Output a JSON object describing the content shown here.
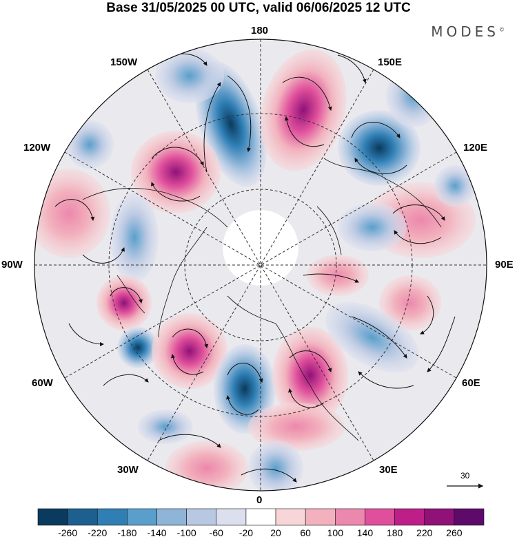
{
  "header": {
    "title": "Base 31/05/2025 00 UTC, valid 06/06/2025 12 UTC",
    "brand": "MODES",
    "brand_mark": "©"
  },
  "map": {
    "projection": "north-polar-stereographic",
    "longitude_labels": {
      "top": "180",
      "top_left": "150W",
      "top_right": "150E",
      "upper_left": "120W",
      "upper_right": "120E",
      "left": "90W",
      "right": "90E",
      "lower_left": "60W",
      "lower_right": "60E",
      "bottom_left": "30W",
      "bottom_right": "30E",
      "bottom": "0"
    },
    "reference_vector": {
      "label": "30"
    },
    "anomaly_centers": [
      {
        "sign": "negative",
        "lon": "160W",
        "strength": "-240"
      },
      {
        "sign": "positive",
        "lon": "165E",
        "strength": "+200"
      },
      {
        "sign": "negative",
        "lon": "135E",
        "strength": "-220"
      },
      {
        "sign": "positive",
        "lon": "130W",
        "strength": "+220"
      },
      {
        "sign": "positive",
        "lon": "100W",
        "strength": "+100"
      },
      {
        "sign": "negative",
        "lon": "95W",
        "strength": "-100"
      },
      {
        "sign": "positive",
        "lon": "105E",
        "strength": "+140"
      },
      {
        "sign": "positive",
        "lon": "80E",
        "strength": "+80"
      },
      {
        "sign": "positive",
        "lon": "70W",
        "strength": "+140"
      },
      {
        "sign": "negative",
        "lon": "60W",
        "strength": "-160"
      },
      {
        "sign": "positive",
        "lon": "45W",
        "strength": "+140"
      },
      {
        "sign": "negative",
        "lon": "10W",
        "strength": "-240"
      },
      {
        "sign": "positive",
        "lon": "20E",
        "strength": "+180"
      },
      {
        "sign": "negative",
        "lon": "55E",
        "strength": "-140"
      },
      {
        "sign": "negative",
        "lon": "50E",
        "strength": "-100"
      }
    ]
  },
  "colorbar": {
    "ticks": [
      "-260",
      "-220",
      "-180",
      "-140",
      "-100",
      "-60",
      "-20",
      "20",
      "60",
      "100",
      "140",
      "180",
      "220",
      "260"
    ],
    "colors": [
      "#0a3a5e",
      "#1d5f8e",
      "#2f7fb5",
      "#5a9fcc",
      "#8eb5d8",
      "#b8c8e2",
      "#dcdfee",
      "#ffffff",
      "#f8d6d8",
      "#f2b1bd",
      "#ec88ad",
      "#df4f9b",
      "#bd1e87",
      "#901178",
      "#5e0a6a"
    ]
  }
}
